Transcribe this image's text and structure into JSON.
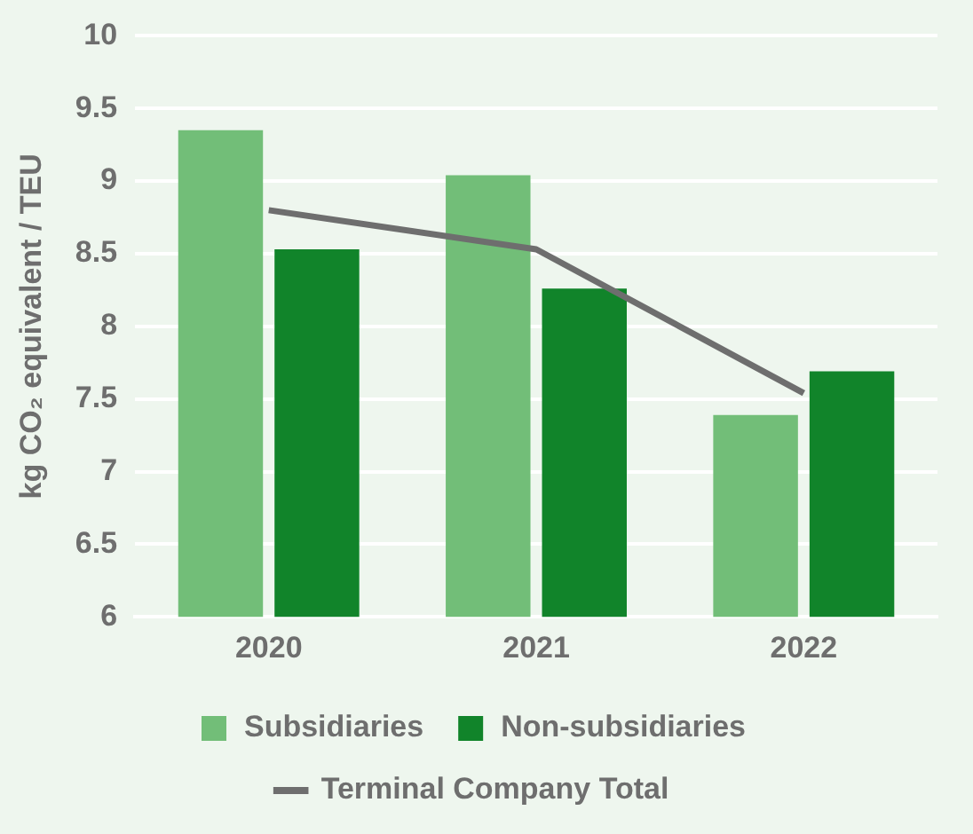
{
  "chart_data": {
    "type": "bar",
    "categories": [
      "2020",
      "2021",
      "2022"
    ],
    "series": [
      {
        "name": "Subsidiaries",
        "color": "#72be78",
        "values": [
          9.35,
          9.04,
          7.39
        ]
      },
      {
        "name": "Non-subsidiaries",
        "color": "#11842a",
        "values": [
          8.53,
          8.26,
          7.69
        ]
      },
      {
        "name": "Terminal Company Total",
        "type": "line",
        "color": "#6e6e6e",
        "values": [
          8.8,
          8.53,
          7.54
        ]
      }
    ],
    "ylabel": "kg CO₂ equivalent / TEU",
    "ylim": [
      6,
      10
    ],
    "yticks": [
      6,
      6.5,
      7,
      7.5,
      8,
      8.5,
      9,
      9.5,
      10
    ],
    "grid": "y",
    "legend": "bottom",
    "marker": "none"
  }
}
